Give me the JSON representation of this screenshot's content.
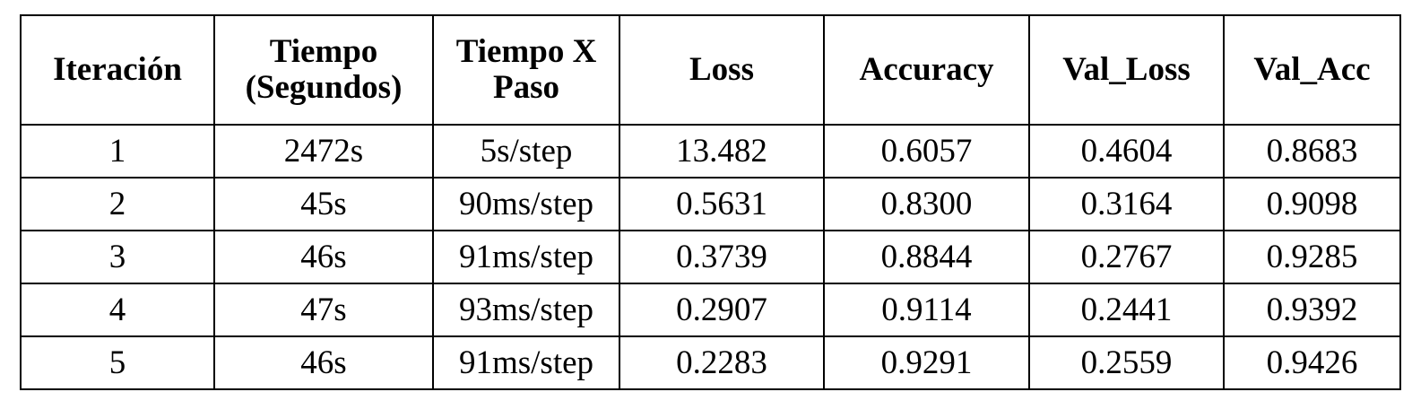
{
  "table": {
    "headers": [
      "Iteración",
      "Tiempo (Segundos)",
      "Tiempo X Paso",
      "Loss",
      "Accuracy",
      "Val_Loss",
      "Val_Acc"
    ],
    "rows": [
      [
        "1",
        "2472s",
        "5s/step",
        "13.482",
        "0.6057",
        "0.4604",
        "0.8683"
      ],
      [
        "2",
        "45s",
        "90ms/step",
        "0.5631",
        "0.8300",
        "0.3164",
        "0.9098"
      ],
      [
        "3",
        "46s",
        "91ms/step",
        "0.3739",
        "0.8844",
        "0.2767",
        "0.9285"
      ],
      [
        "4",
        "47s",
        "93ms/step",
        "0.2907",
        "0.9114",
        "0.2441",
        "0.9392"
      ],
      [
        "5",
        "46s",
        "91ms/step",
        "0.2283",
        "0.9291",
        "0.2559",
        "0.9426"
      ]
    ]
  }
}
